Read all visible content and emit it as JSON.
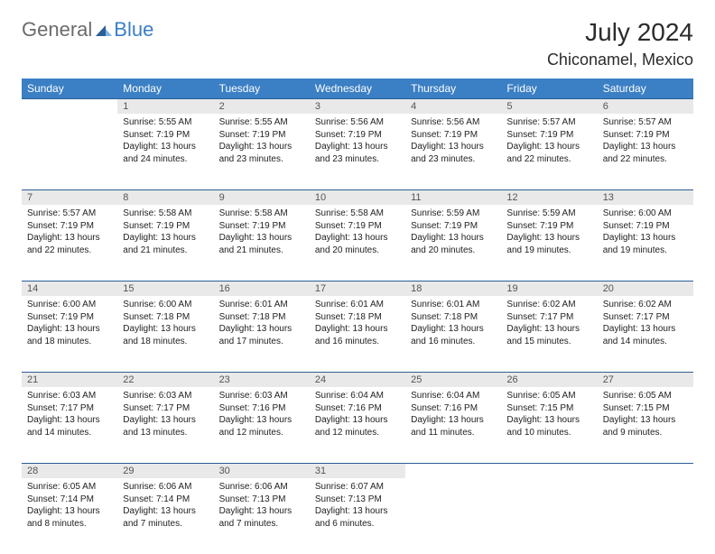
{
  "logo": {
    "general": "General",
    "blue": "Blue"
  },
  "title": "July 2024",
  "location": "Chiconamel, Mexico",
  "colors": {
    "header_bg": "#3b7fc4",
    "header_text": "#ffffff",
    "daynum_bg": "#e9e9e9",
    "rule": "#2b5f95",
    "logo_general": "#6b6b6b",
    "logo_blue": "#3b7fc4"
  },
  "day_headers": [
    "Sunday",
    "Monday",
    "Tuesday",
    "Wednesday",
    "Thursday",
    "Friday",
    "Saturday"
  ],
  "weeks": [
    [
      null,
      {
        "n": "1",
        "sr": "Sunrise: 5:55 AM",
        "ss": "Sunset: 7:19 PM",
        "dl": "Daylight: 13 hours and 24 minutes."
      },
      {
        "n": "2",
        "sr": "Sunrise: 5:55 AM",
        "ss": "Sunset: 7:19 PM",
        "dl": "Daylight: 13 hours and 23 minutes."
      },
      {
        "n": "3",
        "sr": "Sunrise: 5:56 AM",
        "ss": "Sunset: 7:19 PM",
        "dl": "Daylight: 13 hours and 23 minutes."
      },
      {
        "n": "4",
        "sr": "Sunrise: 5:56 AM",
        "ss": "Sunset: 7:19 PM",
        "dl": "Daylight: 13 hours and 23 minutes."
      },
      {
        "n": "5",
        "sr": "Sunrise: 5:57 AM",
        "ss": "Sunset: 7:19 PM",
        "dl": "Daylight: 13 hours and 22 minutes."
      },
      {
        "n": "6",
        "sr": "Sunrise: 5:57 AM",
        "ss": "Sunset: 7:19 PM",
        "dl": "Daylight: 13 hours and 22 minutes."
      }
    ],
    [
      {
        "n": "7",
        "sr": "Sunrise: 5:57 AM",
        "ss": "Sunset: 7:19 PM",
        "dl": "Daylight: 13 hours and 22 minutes."
      },
      {
        "n": "8",
        "sr": "Sunrise: 5:58 AM",
        "ss": "Sunset: 7:19 PM",
        "dl": "Daylight: 13 hours and 21 minutes."
      },
      {
        "n": "9",
        "sr": "Sunrise: 5:58 AM",
        "ss": "Sunset: 7:19 PM",
        "dl": "Daylight: 13 hours and 21 minutes."
      },
      {
        "n": "10",
        "sr": "Sunrise: 5:58 AM",
        "ss": "Sunset: 7:19 PM",
        "dl": "Daylight: 13 hours and 20 minutes."
      },
      {
        "n": "11",
        "sr": "Sunrise: 5:59 AM",
        "ss": "Sunset: 7:19 PM",
        "dl": "Daylight: 13 hours and 20 minutes."
      },
      {
        "n": "12",
        "sr": "Sunrise: 5:59 AM",
        "ss": "Sunset: 7:19 PM",
        "dl": "Daylight: 13 hours and 19 minutes."
      },
      {
        "n": "13",
        "sr": "Sunrise: 6:00 AM",
        "ss": "Sunset: 7:19 PM",
        "dl": "Daylight: 13 hours and 19 minutes."
      }
    ],
    [
      {
        "n": "14",
        "sr": "Sunrise: 6:00 AM",
        "ss": "Sunset: 7:19 PM",
        "dl": "Daylight: 13 hours and 18 minutes."
      },
      {
        "n": "15",
        "sr": "Sunrise: 6:00 AM",
        "ss": "Sunset: 7:18 PM",
        "dl": "Daylight: 13 hours and 18 minutes."
      },
      {
        "n": "16",
        "sr": "Sunrise: 6:01 AM",
        "ss": "Sunset: 7:18 PM",
        "dl": "Daylight: 13 hours and 17 minutes."
      },
      {
        "n": "17",
        "sr": "Sunrise: 6:01 AM",
        "ss": "Sunset: 7:18 PM",
        "dl": "Daylight: 13 hours and 16 minutes."
      },
      {
        "n": "18",
        "sr": "Sunrise: 6:01 AM",
        "ss": "Sunset: 7:18 PM",
        "dl": "Daylight: 13 hours and 16 minutes."
      },
      {
        "n": "19",
        "sr": "Sunrise: 6:02 AM",
        "ss": "Sunset: 7:17 PM",
        "dl": "Daylight: 13 hours and 15 minutes."
      },
      {
        "n": "20",
        "sr": "Sunrise: 6:02 AM",
        "ss": "Sunset: 7:17 PM",
        "dl": "Daylight: 13 hours and 14 minutes."
      }
    ],
    [
      {
        "n": "21",
        "sr": "Sunrise: 6:03 AM",
        "ss": "Sunset: 7:17 PM",
        "dl": "Daylight: 13 hours and 14 minutes."
      },
      {
        "n": "22",
        "sr": "Sunrise: 6:03 AM",
        "ss": "Sunset: 7:17 PM",
        "dl": "Daylight: 13 hours and 13 minutes."
      },
      {
        "n": "23",
        "sr": "Sunrise: 6:03 AM",
        "ss": "Sunset: 7:16 PM",
        "dl": "Daylight: 13 hours and 12 minutes."
      },
      {
        "n": "24",
        "sr": "Sunrise: 6:04 AM",
        "ss": "Sunset: 7:16 PM",
        "dl": "Daylight: 13 hours and 12 minutes."
      },
      {
        "n": "25",
        "sr": "Sunrise: 6:04 AM",
        "ss": "Sunset: 7:16 PM",
        "dl": "Daylight: 13 hours and 11 minutes."
      },
      {
        "n": "26",
        "sr": "Sunrise: 6:05 AM",
        "ss": "Sunset: 7:15 PM",
        "dl": "Daylight: 13 hours and 10 minutes."
      },
      {
        "n": "27",
        "sr": "Sunrise: 6:05 AM",
        "ss": "Sunset: 7:15 PM",
        "dl": "Daylight: 13 hours and 9 minutes."
      }
    ],
    [
      {
        "n": "28",
        "sr": "Sunrise: 6:05 AM",
        "ss": "Sunset: 7:14 PM",
        "dl": "Daylight: 13 hours and 8 minutes."
      },
      {
        "n": "29",
        "sr": "Sunrise: 6:06 AM",
        "ss": "Sunset: 7:14 PM",
        "dl": "Daylight: 13 hours and 7 minutes."
      },
      {
        "n": "30",
        "sr": "Sunrise: 6:06 AM",
        "ss": "Sunset: 7:13 PM",
        "dl": "Daylight: 13 hours and 7 minutes."
      },
      {
        "n": "31",
        "sr": "Sunrise: 6:07 AM",
        "ss": "Sunset: 7:13 PM",
        "dl": "Daylight: 13 hours and 6 minutes."
      },
      null,
      null,
      null
    ]
  ]
}
